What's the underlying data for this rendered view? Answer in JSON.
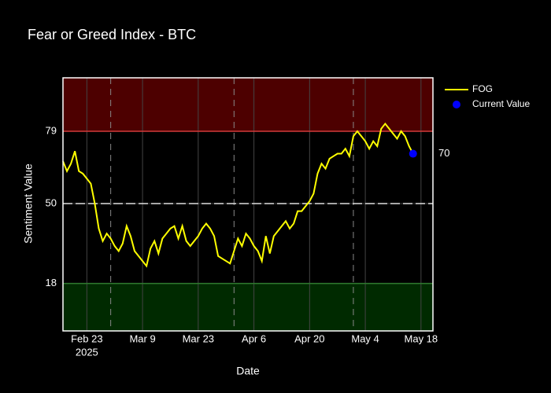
{
  "chart_data": {
    "type": "line",
    "title": "Fear or Greed Index - BTC",
    "x_label": "Date",
    "y_label": "Sentiment Value",
    "x": [
      "2025-02-17",
      "2025-02-18",
      "2025-02-19",
      "2025-02-20",
      "2025-02-21",
      "2025-02-22",
      "2025-02-23",
      "2025-02-24",
      "2025-02-25",
      "2025-02-26",
      "2025-02-27",
      "2025-02-28",
      "2025-03-01",
      "2025-03-02",
      "2025-03-03",
      "2025-03-04",
      "2025-03-05",
      "2025-03-06",
      "2025-03-07",
      "2025-03-08",
      "2025-03-09",
      "2025-03-10",
      "2025-03-11",
      "2025-03-12",
      "2025-03-13",
      "2025-03-14",
      "2025-03-15",
      "2025-03-16",
      "2025-03-17",
      "2025-03-18",
      "2025-03-19",
      "2025-03-20",
      "2025-03-21",
      "2025-03-22",
      "2025-03-23",
      "2025-03-24",
      "2025-03-25",
      "2025-03-26",
      "2025-03-27",
      "2025-03-28",
      "2025-03-29",
      "2025-03-30",
      "2025-03-31",
      "2025-04-01",
      "2025-04-02",
      "2025-04-03",
      "2025-04-04",
      "2025-04-05",
      "2025-04-06",
      "2025-04-07",
      "2025-04-08",
      "2025-04-09",
      "2025-04-10",
      "2025-04-11",
      "2025-04-12",
      "2025-04-13",
      "2025-04-14",
      "2025-04-15",
      "2025-04-16",
      "2025-04-17",
      "2025-04-18",
      "2025-04-19",
      "2025-04-20",
      "2025-04-21",
      "2025-04-22",
      "2025-04-23",
      "2025-04-24",
      "2025-04-25",
      "2025-04-26",
      "2025-04-27",
      "2025-04-28",
      "2025-04-29",
      "2025-04-30",
      "2025-05-01",
      "2025-05-02",
      "2025-05-03",
      "2025-05-04",
      "2025-05-05",
      "2025-05-06",
      "2025-05-07",
      "2025-05-08",
      "2025-05-09",
      "2025-05-10",
      "2025-05-11",
      "2025-05-12",
      "2025-05-13",
      "2025-05-14",
      "2025-05-15",
      "2025-05-16"
    ],
    "series": [
      {
        "name": "FOG",
        "color": "#ffff00",
        "values": [
          67,
          63,
          66,
          71,
          63,
          62,
          60,
          58,
          50,
          40,
          35,
          38,
          36,
          33,
          31,
          34,
          41,
          37,
          31,
          29,
          27,
          25,
          32,
          35,
          30,
          36,
          38,
          40,
          41,
          36,
          41,
          35,
          33,
          35,
          37,
          40,
          42,
          40,
          37,
          29,
          28,
          27,
          26,
          31,
          36,
          33,
          38,
          36,
          33,
          31,
          27,
          37,
          30,
          37,
          39,
          41,
          43,
          40,
          42,
          47,
          47,
          49,
          51,
          54,
          62,
          66,
          64,
          68,
          69,
          70,
          70,
          72,
          69,
          77,
          79,
          77,
          75,
          72,
          75,
          73,
          80,
          82,
          80,
          78,
          76,
          79,
          77,
          73,
          70
        ]
      },
      {
        "name": "Current Value",
        "color": "#0000ff",
        "x": [
          "2025-05-16"
        ],
        "values": [
          70
        ],
        "value_labels": [
          "70"
        ]
      }
    ],
    "xlim": [
      "2025-02-17",
      "2025-05-21"
    ],
    "xticks": [
      {
        "value": "2025-02-23",
        "label": "Feb 23"
      },
      {
        "value": "2025-03-09",
        "label": "Mar 9"
      },
      {
        "value": "2025-03-23",
        "label": "Mar 23"
      },
      {
        "value": "2025-04-06",
        "label": "Apr 6"
      },
      {
        "value": "2025-04-20",
        "label": "Apr 20"
      },
      {
        "value": "2025-05-04",
        "label": "May 4"
      },
      {
        "value": "2025-05-18",
        "label": "May 18"
      }
    ],
    "x_year_label": "2025",
    "ylim": [
      -1,
      100.4
    ],
    "yticks": [
      18,
      50,
      79
    ],
    "grid": true,
    "bands": [
      {
        "from": 79,
        "to": 100.4,
        "color": "#4d0000",
        "line": "#d23a3a"
      },
      {
        "from": -1,
        "to": 18,
        "color": "#002a00",
        "line": "#2f7a2f"
      }
    ],
    "reference_line": {
      "value": 50,
      "color": "#e0e0e0"
    },
    "month_lines": [
      "2025-03-01",
      "2025-04-01",
      "2025-05-01"
    ],
    "legend": "outside-top-right"
  }
}
